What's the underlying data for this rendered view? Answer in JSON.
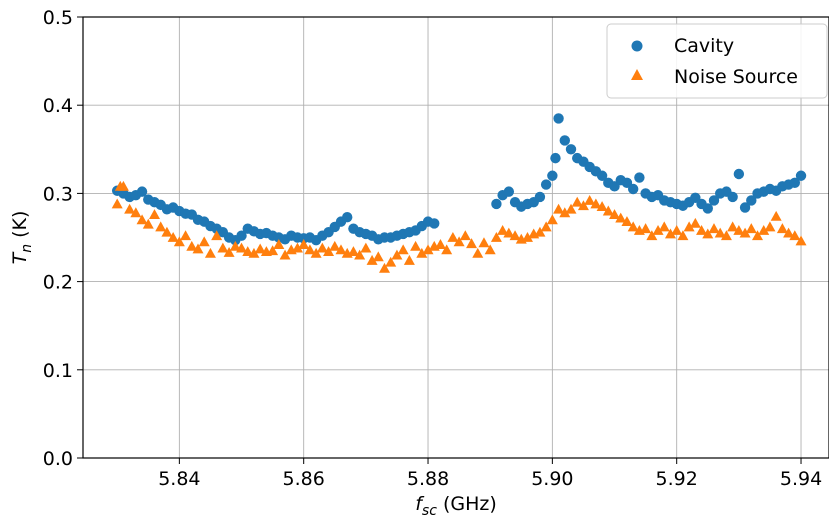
{
  "chart_data": {
    "type": "scatter",
    "xlabel": {
      "main": "f",
      "sub": "sc",
      "unit": " (GHz)"
    },
    "ylabel": {
      "main": "T",
      "sub": "n",
      "unit": " (K)"
    },
    "xlim": [
      5.8245,
      5.9445
    ],
    "ylim": [
      0.0,
      0.5
    ],
    "x_ticks": [
      5.84,
      5.86,
      5.88,
      5.9,
      5.92,
      5.94
    ],
    "x_tick_labels": [
      "5.84",
      "5.86",
      "5.88",
      "5.90",
      "5.92",
      "5.94"
    ],
    "y_ticks": [
      0.0,
      0.1,
      0.2,
      0.3,
      0.4,
      0.5
    ],
    "y_tick_labels": [
      "0.0",
      "0.1",
      "0.2",
      "0.3",
      "0.4",
      "0.5"
    ],
    "grid": true,
    "legend_position": "top-right",
    "series": [
      {
        "name": "Cavity",
        "marker": "circle",
        "color": "#1f77b4",
        "points": [
          [
            5.83,
            0.303
          ],
          [
            5.831,
            0.3
          ],
          [
            5.832,
            0.296
          ],
          [
            5.833,
            0.298
          ],
          [
            5.834,
            0.302
          ],
          [
            5.835,
            0.293
          ],
          [
            5.836,
            0.29
          ],
          [
            5.837,
            0.287
          ],
          [
            5.838,
            0.282
          ],
          [
            5.839,
            0.284
          ],
          [
            5.84,
            0.28
          ],
          [
            5.841,
            0.277
          ],
          [
            5.842,
            0.276
          ],
          [
            5.843,
            0.27
          ],
          [
            5.844,
            0.268
          ],
          [
            5.845,
            0.263
          ],
          [
            5.846,
            0.26
          ],
          [
            5.847,
            0.256
          ],
          [
            5.848,
            0.25
          ],
          [
            5.849,
            0.247
          ],
          [
            5.85,
            0.252
          ],
          [
            5.851,
            0.26
          ],
          [
            5.852,
            0.257
          ],
          [
            5.853,
            0.254
          ],
          [
            5.854,
            0.255
          ],
          [
            5.855,
            0.252
          ],
          [
            5.856,
            0.25
          ],
          [
            5.857,
            0.248
          ],
          [
            5.858,
            0.252
          ],
          [
            5.859,
            0.25
          ],
          [
            5.86,
            0.249
          ],
          [
            5.861,
            0.25
          ],
          [
            5.862,
            0.247
          ],
          [
            5.863,
            0.252
          ],
          [
            5.864,
            0.256
          ],
          [
            5.865,
            0.262
          ],
          [
            5.866,
            0.268
          ],
          [
            5.867,
            0.273
          ],
          [
            5.868,
            0.26
          ],
          [
            5.869,
            0.256
          ],
          [
            5.87,
            0.254
          ],
          [
            5.871,
            0.252
          ],
          [
            5.872,
            0.248
          ],
          [
            5.873,
            0.25
          ],
          [
            5.874,
            0.25
          ],
          [
            5.875,
            0.252
          ],
          [
            5.876,
            0.254
          ],
          [
            5.877,
            0.256
          ],
          [
            5.878,
            0.258
          ],
          [
            5.879,
            0.263
          ],
          [
            5.88,
            0.268
          ],
          [
            5.881,
            0.266
          ],
          [
            5.891,
            0.288
          ],
          [
            5.892,
            0.298
          ],
          [
            5.893,
            0.302
          ],
          [
            5.894,
            0.29
          ],
          [
            5.895,
            0.285
          ],
          [
            5.896,
            0.288
          ],
          [
            5.897,
            0.29
          ],
          [
            5.898,
            0.296
          ],
          [
            5.899,
            0.31
          ],
          [
            5.9,
            0.32
          ],
          [
            5.9005,
            0.34
          ],
          [
            5.901,
            0.385
          ],
          [
            5.902,
            0.36
          ],
          [
            5.903,
            0.35
          ],
          [
            5.904,
            0.34
          ],
          [
            5.905,
            0.336
          ],
          [
            5.906,
            0.33
          ],
          [
            5.907,
            0.325
          ],
          [
            5.908,
            0.32
          ],
          [
            5.909,
            0.312
          ],
          [
            5.91,
            0.308
          ],
          [
            5.911,
            0.315
          ],
          [
            5.912,
            0.312
          ],
          [
            5.913,
            0.305
          ],
          [
            5.914,
            0.318
          ],
          [
            5.915,
            0.3
          ],
          [
            5.916,
            0.296
          ],
          [
            5.917,
            0.298
          ],
          [
            5.918,
            0.292
          ],
          [
            5.919,
            0.29
          ],
          [
            5.92,
            0.288
          ],
          [
            5.921,
            0.286
          ],
          [
            5.922,
            0.29
          ],
          [
            5.923,
            0.295
          ],
          [
            5.924,
            0.288
          ],
          [
            5.925,
            0.283
          ],
          [
            5.926,
            0.292
          ],
          [
            5.927,
            0.3
          ],
          [
            5.928,
            0.302
          ],
          [
            5.929,
            0.296
          ],
          [
            5.93,
            0.322
          ],
          [
            5.931,
            0.284
          ],
          [
            5.932,
            0.292
          ],
          [
            5.933,
            0.3
          ],
          [
            5.934,
            0.302
          ],
          [
            5.935,
            0.305
          ],
          [
            5.936,
            0.303
          ],
          [
            5.937,
            0.308
          ],
          [
            5.938,
            0.31
          ],
          [
            5.939,
            0.312
          ],
          [
            5.94,
            0.32
          ]
        ]
      },
      {
        "name": "Noise Source",
        "marker": "triangle",
        "color": "#ff7f0e",
        "points": [
          [
            5.83,
            0.288
          ],
          [
            5.8305,
            0.308
          ],
          [
            5.831,
            0.308
          ],
          [
            5.832,
            0.282
          ],
          [
            5.833,
            0.278
          ],
          [
            5.834,
            0.27
          ],
          [
            5.835,
            0.265
          ],
          [
            5.836,
            0.276
          ],
          [
            5.837,
            0.262
          ],
          [
            5.838,
            0.256
          ],
          [
            5.839,
            0.25
          ],
          [
            5.84,
            0.245
          ],
          [
            5.841,
            0.252
          ],
          [
            5.842,
            0.24
          ],
          [
            5.843,
            0.237
          ],
          [
            5.844,
            0.245
          ],
          [
            5.845,
            0.232
          ],
          [
            5.846,
            0.252
          ],
          [
            5.847,
            0.238
          ],
          [
            5.848,
            0.233
          ],
          [
            5.849,
            0.24
          ],
          [
            5.85,
            0.238
          ],
          [
            5.851,
            0.234
          ],
          [
            5.852,
            0.232
          ],
          [
            5.853,
            0.237
          ],
          [
            5.854,
            0.234
          ],
          [
            5.855,
            0.235
          ],
          [
            5.856,
            0.242
          ],
          [
            5.857,
            0.23
          ],
          [
            5.858,
            0.236
          ],
          [
            5.859,
            0.238
          ],
          [
            5.86,
            0.242
          ],
          [
            5.861,
            0.236
          ],
          [
            5.862,
            0.232
          ],
          [
            5.863,
            0.238
          ],
          [
            5.864,
            0.234
          ],
          [
            5.865,
            0.24
          ],
          [
            5.866,
            0.236
          ],
          [
            5.867,
            0.232
          ],
          [
            5.868,
            0.234
          ],
          [
            5.869,
            0.23
          ],
          [
            5.87,
            0.238
          ],
          [
            5.871,
            0.224
          ],
          [
            5.872,
            0.228
          ],
          [
            5.873,
            0.215
          ],
          [
            5.874,
            0.222
          ],
          [
            5.875,
            0.23
          ],
          [
            5.876,
            0.236
          ],
          [
            5.877,
            0.224
          ],
          [
            5.878,
            0.24
          ],
          [
            5.879,
            0.232
          ],
          [
            5.88,
            0.236
          ],
          [
            5.881,
            0.24
          ],
          [
            5.882,
            0.242
          ],
          [
            5.883,
            0.236
          ],
          [
            5.884,
            0.25
          ],
          [
            5.885,
            0.245
          ],
          [
            5.886,
            0.252
          ],
          [
            5.887,
            0.243
          ],
          [
            5.888,
            0.232
          ],
          [
            5.889,
            0.244
          ],
          [
            5.89,
            0.236
          ],
          [
            5.891,
            0.25
          ],
          [
            5.892,
            0.258
          ],
          [
            5.893,
            0.255
          ],
          [
            5.894,
            0.252
          ],
          [
            5.895,
            0.248
          ],
          [
            5.896,
            0.25
          ],
          [
            5.897,
            0.254
          ],
          [
            5.898,
            0.256
          ],
          [
            5.899,
            0.262
          ],
          [
            5.9,
            0.27
          ],
          [
            5.901,
            0.282
          ],
          [
            5.902,
            0.278
          ],
          [
            5.903,
            0.282
          ],
          [
            5.904,
            0.29
          ],
          [
            5.905,
            0.286
          ],
          [
            5.906,
            0.292
          ],
          [
            5.907,
            0.288
          ],
          [
            5.908,
            0.285
          ],
          [
            5.909,
            0.28
          ],
          [
            5.91,
            0.276
          ],
          [
            5.911,
            0.272
          ],
          [
            5.912,
            0.268
          ],
          [
            5.913,
            0.262
          ],
          [
            5.914,
            0.258
          ],
          [
            5.915,
            0.26
          ],
          [
            5.916,
            0.252
          ],
          [
            5.917,
            0.258
          ],
          [
            5.918,
            0.262
          ],
          [
            5.919,
            0.254
          ],
          [
            5.92,
            0.258
          ],
          [
            5.921,
            0.252
          ],
          [
            5.922,
            0.262
          ],
          [
            5.923,
            0.266
          ],
          [
            5.924,
            0.258
          ],
          [
            5.925,
            0.254
          ],
          [
            5.926,
            0.26
          ],
          [
            5.927,
            0.255
          ],
          [
            5.928,
            0.252
          ],
          [
            5.929,
            0.262
          ],
          [
            5.93,
            0.258
          ],
          [
            5.931,
            0.255
          ],
          [
            5.932,
            0.26
          ],
          [
            5.933,
            0.252
          ],
          [
            5.934,
            0.258
          ],
          [
            5.935,
            0.262
          ],
          [
            5.936,
            0.274
          ],
          [
            5.937,
            0.26
          ],
          [
            5.938,
            0.255
          ],
          [
            5.939,
            0.252
          ],
          [
            5.94,
            0.246
          ]
        ]
      }
    ]
  }
}
